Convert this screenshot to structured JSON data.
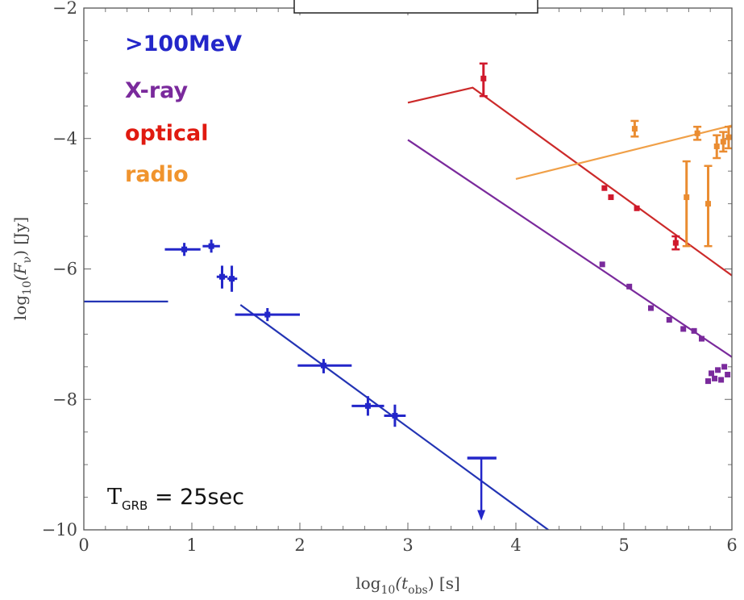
{
  "chart_data": {
    "type": "scatter",
    "title": "",
    "xlabel_base": "log",
    "xlabel_sub": "10",
    "xlabel_arg": "(t",
    "xlabel_argsub": "obs",
    "xlabel_unit": ") [s]",
    "ylabel_base": "log",
    "ylabel_sub": "10",
    "ylabel_arg": "(F",
    "ylabel_argsub": "ν",
    "ylabel_unit": ") [Jy]",
    "xlim": [
      0,
      6
    ],
    "ylim": [
      -10,
      -2
    ],
    "xticks": [
      0,
      1,
      2,
      3,
      4,
      5,
      6
    ],
    "yticks": [
      -10,
      -8,
      -6,
      -4,
      -2
    ],
    "annotation": {
      "main": "T",
      "sub": "GRB",
      "rest": " = 25sec"
    },
    "legend_placement": "top-left",
    "series": [
      {
        "name": ">100MeV",
        "color": "#2326c9",
        "model_color": "#2334b4",
        "model_lines": [
          [
            [
              0,
              -6.5
            ],
            [
              0.78,
              -6.5
            ]
          ],
          [
            [
              1.45,
              -6.55
            ],
            [
              4.3,
              -10.0
            ]
          ]
        ],
        "points": [
          {
            "x": 0.93,
            "y": -5.7,
            "xlo": 0.75,
            "xhi": 1.08,
            "ylo": -5.8,
            "yhi": -5.6
          },
          {
            "x": 1.18,
            "y": -5.65,
            "xlo": 1.1,
            "xhi": 1.26,
            "ylo": -5.75,
            "yhi": -5.55
          },
          {
            "x": 1.28,
            "y": -6.12,
            "xlo": 1.23,
            "xhi": 1.33,
            "ylo": -6.3,
            "yhi": -5.95
          },
          {
            "x": 1.37,
            "y": -6.15,
            "xlo": 1.33,
            "xhi": 1.42,
            "ylo": -6.35,
            "yhi": -5.95
          },
          {
            "x": 1.7,
            "y": -6.7,
            "xlo": 1.4,
            "xhi": 2.0,
            "ylo": -6.8,
            "yhi": -6.6
          },
          {
            "x": 2.22,
            "y": -7.48,
            "xlo": 1.98,
            "xhi": 2.48,
            "ylo": -7.6,
            "yhi": -7.38
          },
          {
            "x": 2.63,
            "y": -8.1,
            "xlo": 2.48,
            "xhi": 2.78,
            "ylo": -8.25,
            "yhi": -7.95
          },
          {
            "x": 2.88,
            "y": -8.25,
            "xlo": 2.78,
            "xhi": 2.98,
            "ylo": -8.42,
            "yhi": -8.08
          }
        ],
        "upper_limit": {
          "x": 3.68,
          "y": -8.9,
          "xlo": 3.55,
          "xhi": 3.82,
          "arrow_to": -9.82
        }
      },
      {
        "name": "X-ray",
        "color": "#7a2a9c",
        "model_color": "#7a2a9c",
        "model_lines": [
          [
            [
              3.0,
              -4.02
            ],
            [
              6.0,
              -7.35
            ]
          ]
        ],
        "points": [
          {
            "x": 4.8,
            "y": -5.93
          },
          {
            "x": 5.05,
            "y": -6.27
          },
          {
            "x": 5.25,
            "y": -6.6
          },
          {
            "x": 5.42,
            "y": -6.78
          },
          {
            "x": 5.55,
            "y": -6.92
          },
          {
            "x": 5.65,
            "y": -6.95
          },
          {
            "x": 5.72,
            "y": -7.07
          },
          {
            "x": 5.78,
            "y": -7.72
          },
          {
            "x": 5.81,
            "y": -7.6
          },
          {
            "x": 5.84,
            "y": -7.68
          },
          {
            "x": 5.87,
            "y": -7.55
          },
          {
            "x": 5.9,
            "y": -7.7
          },
          {
            "x": 5.93,
            "y": -7.5
          },
          {
            "x": 5.96,
            "y": -7.62
          }
        ]
      },
      {
        "name": "optical",
        "color": "#d0192c",
        "model_color": "#cc2a2a",
        "model_lines": [
          [
            [
              3.0,
              -3.45
            ],
            [
              3.6,
              -3.22
            ],
            [
              6.0,
              -6.1
            ]
          ]
        ],
        "points": [
          {
            "x": 3.7,
            "y": -3.08,
            "ylo": -3.35,
            "yhi": -2.85
          },
          {
            "x": 4.82,
            "y": -4.76
          },
          {
            "x": 4.88,
            "y": -4.9
          },
          {
            "x": 5.12,
            "y": -5.07
          },
          {
            "x": 5.48,
            "y": -5.6,
            "ylo": -5.7,
            "yhi": -5.5
          }
        ]
      },
      {
        "name": "radio",
        "color": "#ea8c31",
        "model_color": "#f0a048",
        "model_lines": [
          [
            [
              4.0,
              -4.62
            ],
            [
              6.0,
              -3.8
            ]
          ]
        ],
        "points": [
          {
            "x": 5.1,
            "y": -3.85,
            "ylo": -3.97,
            "yhi": -3.73
          },
          {
            "x": 5.58,
            "y": -4.9,
            "ylo": -5.65,
            "yhi": -4.35
          },
          {
            "x": 5.68,
            "y": -3.92,
            "ylo": -4.02,
            "yhi": -3.82
          },
          {
            "x": 5.78,
            "y": -5.0,
            "ylo": -5.65,
            "yhi": -4.42
          },
          {
            "x": 5.86,
            "y": -4.12,
            "ylo": -4.3,
            "yhi": -3.95
          },
          {
            "x": 5.92,
            "y": -4.05,
            "ylo": -4.2,
            "yhi": -3.9
          },
          {
            "x": 5.97,
            "y": -3.98,
            "ylo": -4.15,
            "yhi": -3.82
          }
        ]
      }
    ]
  }
}
